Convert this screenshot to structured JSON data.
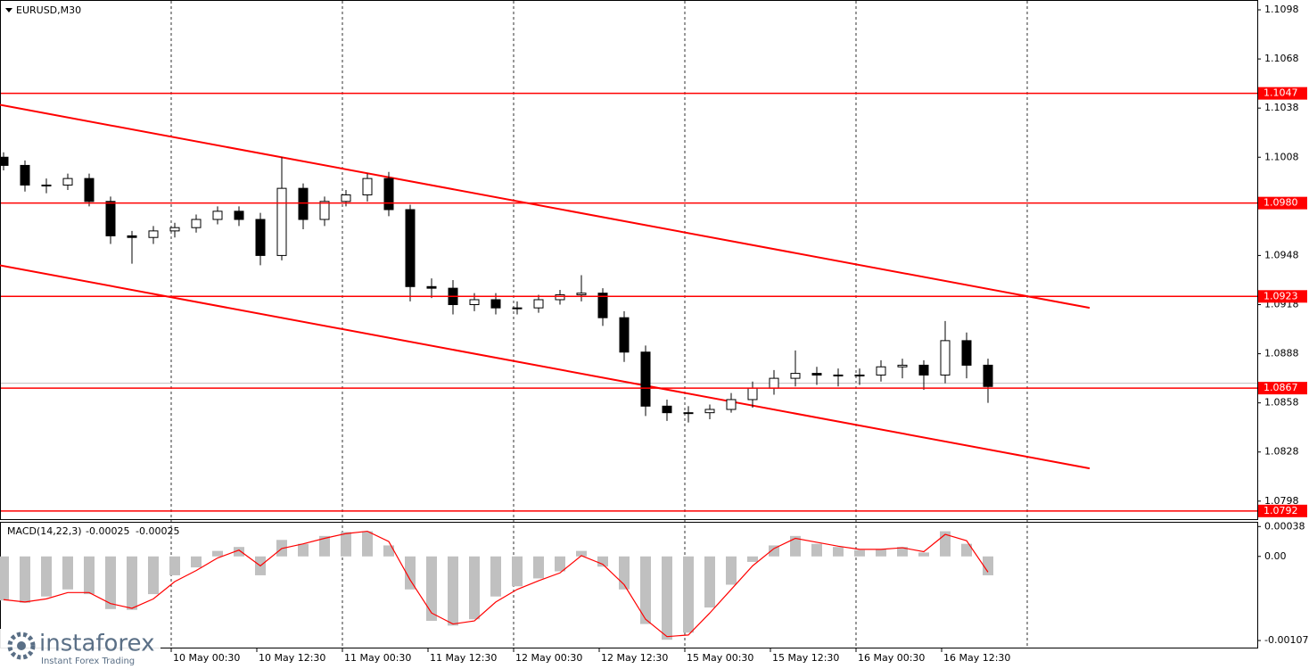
{
  "symbol": "EURUSD,M30",
  "chart_data": [
    {
      "type": "candlestick",
      "x": [
        1,
        4,
        7,
        10,
        13,
        16,
        19,
        22,
        25,
        28,
        31,
        34,
        37,
        40,
        43,
        46,
        49,
        52,
        55,
        58,
        61,
        64,
        67,
        70,
        73,
        76,
        79,
        82,
        85,
        88,
        91,
        94,
        97,
        100,
        103,
        106,
        109,
        112,
        115,
        118,
        121,
        124,
        127,
        130,
        133,
        136,
        139
      ],
      "open": [
        1.1008,
        1.1003,
        1.0991,
        1.0991,
        1.0995,
        1.0981,
        1.096,
        1.0959,
        1.0963,
        1.0965,
        1.097,
        1.0975,
        1.097,
        1.0948,
        1.0989,
        1.097,
        1.0981,
        1.0985,
        1.0995,
        1.0976,
        1.0929,
        1.0928,
        1.0918,
        1.0921,
        1.0916,
        1.0916,
        1.0921,
        1.0924,
        1.0925,
        1.091,
        1.0889,
        1.0856,
        1.0852,
        1.0852,
        1.0854,
        1.086,
        1.0867,
        1.0873,
        1.0876,
        1.0875,
        1.0875,
        1.0875,
        1.088,
        1.0881,
        1.0875,
        1.0896,
        1.0881
      ],
      "high": [
        1.1011,
        1.1006,
        1.0995,
        1.0998,
        1.0998,
        1.0984,
        1.0963,
        1.0966,
        1.0968,
        1.0973,
        1.0978,
        1.0978,
        1.0974,
        1.1008,
        1.0992,
        1.0984,
        1.0988,
        1.0998,
        1.0999,
        1.0979,
        1.0934,
        1.0933,
        1.0925,
        1.0925,
        1.092,
        1.0924,
        1.0927,
        1.0936,
        1.0928,
        1.0914,
        1.0893,
        1.086,
        1.0856,
        1.0857,
        1.0864,
        1.0871,
        1.0878,
        1.089,
        1.088,
        1.0879,
        1.0879,
        1.0884,
        1.0885,
        1.0884,
        1.0908,
        1.0901,
        1.0885
      ],
      "low": [
        1.1,
        1.0987,
        1.0986,
        1.0988,
        1.0978,
        1.0955,
        1.0943,
        1.0955,
        1.0959,
        1.0962,
        1.0967,
        1.0966,
        1.0942,
        1.0945,
        1.0964,
        1.0966,
        1.0978,
        1.0981,
        1.0972,
        1.092,
        1.0922,
        1.0912,
        1.0914,
        1.0912,
        1.0912,
        1.0913,
        1.0918,
        1.092,
        1.0905,
        1.0883,
        1.085,
        1.0847,
        1.0846,
        1.0848,
        1.0852,
        1.0855,
        1.0863,
        1.0868,
        1.0869,
        1.0868,
        1.0869,
        1.0871,
        1.0873,
        1.0866,
        1.087,
        1.0873,
        1.0858
      ],
      "close": [
        1.1003,
        1.0991,
        1.0991,
        1.0995,
        1.0981,
        1.096,
        1.0959,
        1.0963,
        1.0965,
        1.097,
        1.0975,
        1.097,
        1.0948,
        1.0989,
        1.097,
        1.0981,
        1.0985,
        1.0995,
        1.0976,
        1.0929,
        1.0928,
        1.0918,
        1.0921,
        1.0916,
        1.0916,
        1.0921,
        1.0924,
        1.0925,
        1.091,
        1.0889,
        1.0856,
        1.0852,
        1.0852,
        1.0854,
        1.086,
        1.0867,
        1.0873,
        1.0876,
        1.0875,
        1.0875,
        1.0875,
        1.088,
        1.0881,
        1.0875,
        1.0896,
        1.0881,
        1.0868
      ],
      "color": "#000000",
      "xlim": [
        0.5,
        176.75
      ],
      "xticks": [
        {
          "value": 24.5,
          "label": "10 May 00:30"
        },
        {
          "value": 36.5,
          "label": "10 May 12:30"
        },
        {
          "value": 48.5,
          "label": "11 May 00:30"
        },
        {
          "value": 60.5,
          "label": "11 May 12:30"
        },
        {
          "value": 72.5,
          "label": "12 May 00:30"
        },
        {
          "value": 84.5,
          "label": "12 May 12:30"
        },
        {
          "value": 96.5,
          "label": "15 May 00:30"
        },
        {
          "value": 108.5,
          "label": "15 May 12:30"
        },
        {
          "value": 120.5,
          "label": "16 May 00:30"
        },
        {
          "value": 132.5,
          "label": "16 May 12:30"
        }
      ],
      "xgrid": [
        24.5,
        48.5,
        72.5,
        96.5,
        120.5,
        144.5
      ],
      "ylim": [
        1.0787,
        1.1104
      ],
      "yticks": [
        1.1098,
        1.1068,
        1.1038,
        1.1008,
        1.0948,
        1.0918,
        1.0888,
        1.0858,
        1.0828,
        1.0798
      ],
      "levels": [
        1.1047,
        {
          "value": 1.098,
          "label": "1.0980"
        },
        1.0923,
        1.0867,
        1.0792
      ],
      "level_color": "#ff0000",
      "bid": 1.087,
      "trendlines": [
        {
          "x": [
            0.5,
            153.25
          ],
          "y": [
            1.104,
            1.0916
          ]
        },
        {
          "x": [
            0.5,
            153.25
          ],
          "y": [
            1.0942,
            1.0818
          ]
        }
      ]
    },
    {
      "type": "macd",
      "label": "MACD(14,22,3)",
      "current_values": [
        -0.00025,
        -0.00025
      ],
      "x": [
        1,
        4,
        7,
        10,
        13,
        16,
        19,
        22,
        25,
        28,
        31,
        34,
        37,
        40,
        43,
        46,
        49,
        52,
        55,
        58,
        61,
        64,
        67,
        70,
        73,
        76,
        79,
        82,
        85,
        88,
        91,
        94,
        97,
        100,
        103,
        106,
        109,
        112,
        115,
        118,
        121,
        124,
        127,
        130,
        133,
        136,
        139
      ],
      "series": [
        {
          "color": "#c0c0c0",
          "values": [
            -0.00056,
            -0.00059,
            -0.00051,
            -0.00042,
            -0.00048,
            -0.00067,
            -0.00068,
            -0.00048,
            -0.00024,
            -0.00014,
            7e-05,
            0.00012,
            -0.00024,
            0.00021,
            0.00016,
            0.00026,
            0.00031,
            0.00032,
            0.00014,
            -0.00042,
            -0.00082,
            -0.00088,
            -0.0008,
            -0.00051,
            -0.00038,
            -0.00028,
            -0.00019,
            7e-05,
            -0.00013,
            -0.00042,
            -0.00086,
            -0.00106,
            -0.00097,
            -0.00065,
            -0.00036,
            -7e-05,
            0.00014,
            0.00026,
            0.00016,
            0.00012,
            8e-05,
            9e-05,
            0.00012,
            5e-05,
            0.00032,
            0.00016,
            -0.00024
          ]
        },
        {
          "color": "#ff0000",
          "values": [
            -0.00055,
            -0.00058,
            -0.00054,
            -0.00046,
            -0.00046,
            -0.0006,
            -0.00066,
            -0.00054,
            -0.00032,
            -0.00018,
            -2e-05,
            8e-05,
            -0.00012,
            0.0001,
            0.00016,
            0.00023,
            0.00029,
            0.00032,
            0.00019,
            -0.0003,
            -0.00072,
            -0.00086,
            -0.00082,
            -0.00058,
            -0.00042,
            -0.00031,
            -0.00021,
            1e-05,
            -0.0001,
            -0.00036,
            -0.0008,
            -0.00102,
            -0.001,
            -0.00072,
            -0.00042,
            -0.00012,
            0.0001,
            0.00023,
            0.00018,
            0.00013,
            9e-05,
            9e-05,
            0.00011,
            6e-05,
            0.00028,
            0.0002,
            -0.0002
          ]
        }
      ],
      "ylim": [
        -0.00116,
        0.00044
      ],
      "yticks": [
        0.00038,
        {
          "value": 0,
          "label": "0.00"
        },
        -0.00107
      ]
    }
  ],
  "watermark": {
    "brand": "instaforex",
    "tagline": "Instant Forex Trading"
  }
}
